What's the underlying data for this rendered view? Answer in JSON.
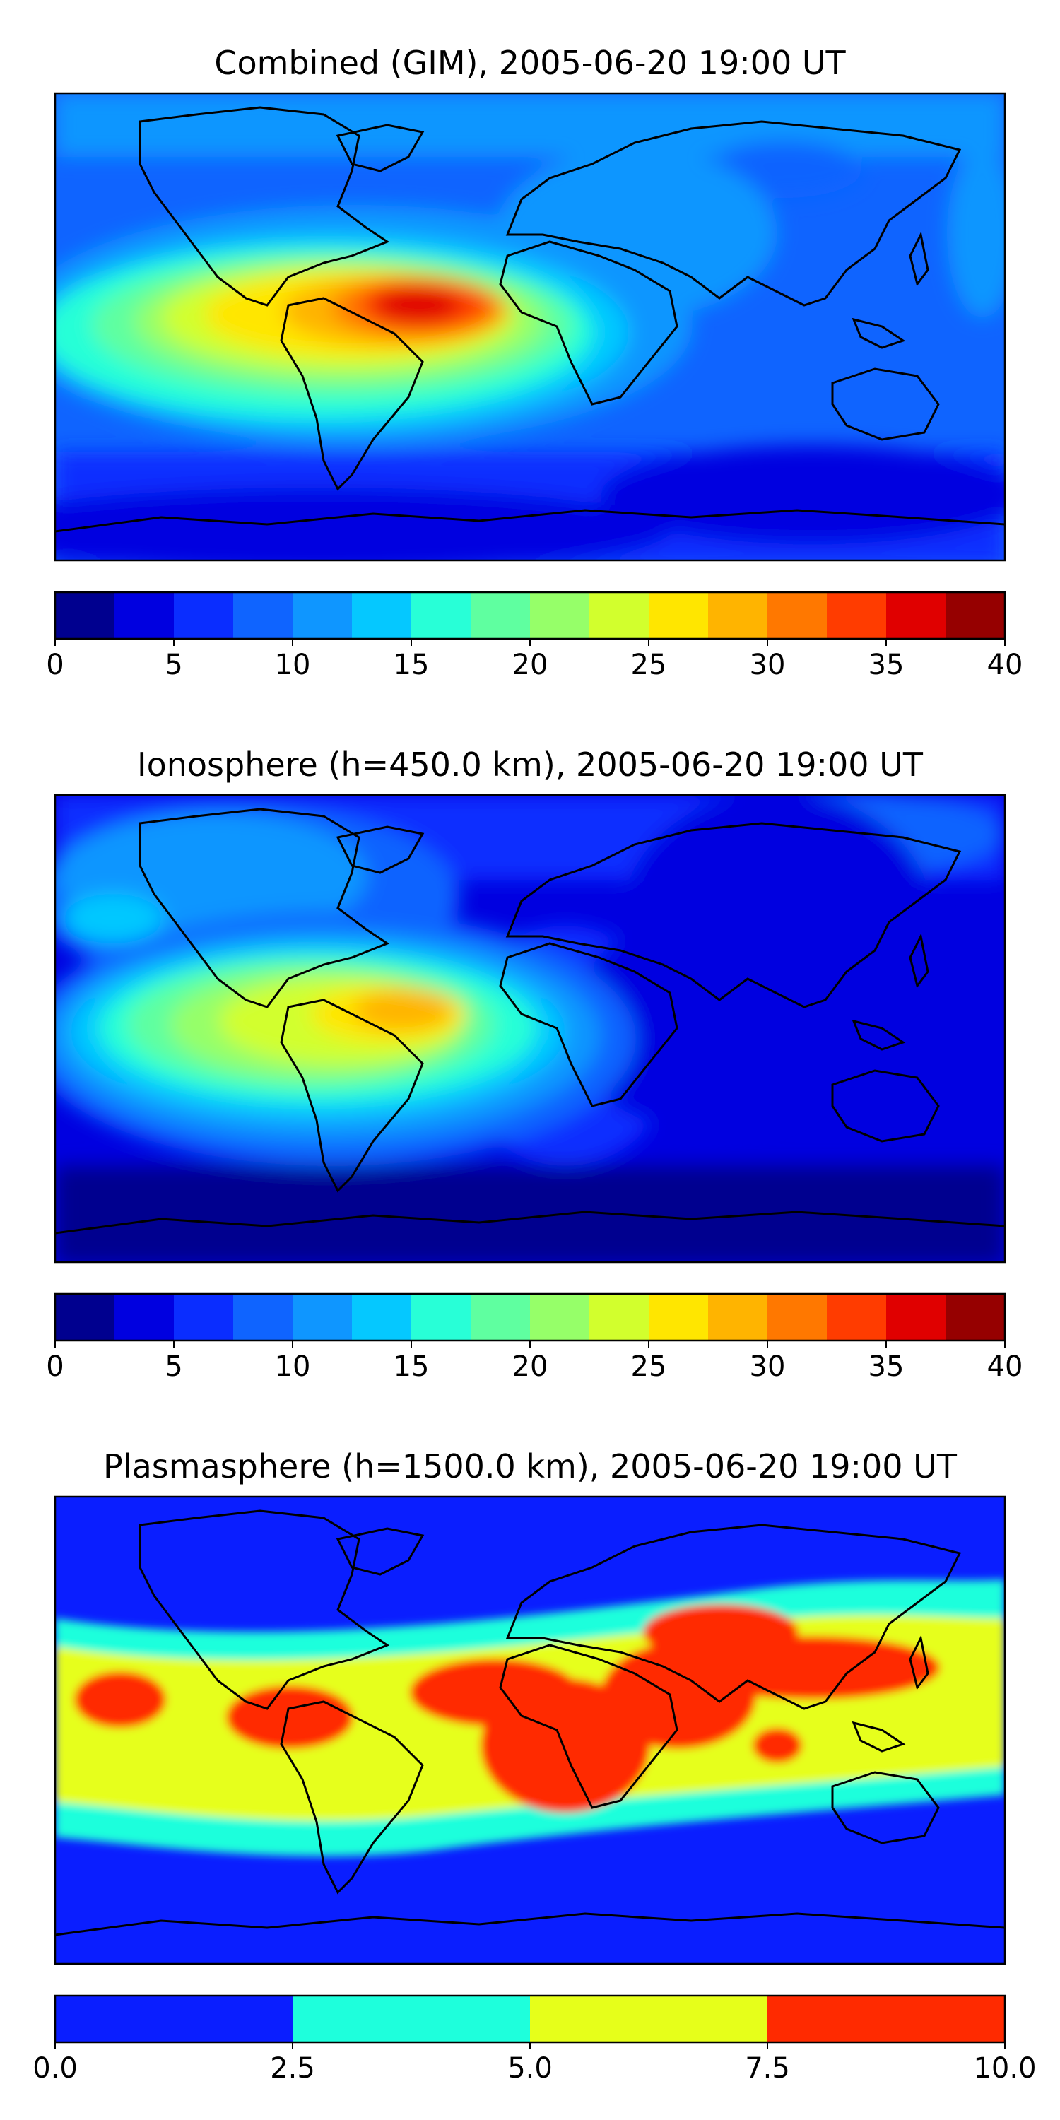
{
  "chart_data": [
    {
      "type": "heatmap",
      "title": "Combined (GIM), 2005-06-20 19:00 UT",
      "colorbar": {
        "levels": [
          0,
          2.5,
          5,
          7.5,
          10,
          12.5,
          15,
          17.5,
          20,
          22.5,
          25,
          27.5,
          30,
          32.5,
          35,
          37.5,
          40
        ],
        "colors": [
          "#00008f",
          "#0000e0",
          "#0a2dff",
          "#0f64ff",
          "#0f96ff",
          "#05c8ff",
          "#28ffd7",
          "#5fffa0",
          "#96ff69",
          "#d2ff2d",
          "#ffe600",
          "#ffb400",
          "#ff7800",
          "#ff3c00",
          "#e00000",
          "#960000"
        ],
        "ticks": [
          "0",
          "5",
          "10",
          "15",
          "20",
          "25",
          "30",
          "35",
          "40"
        ]
      },
      "peak_region": "northern South America",
      "peak_value": 35
    },
    {
      "type": "heatmap",
      "title": "Ionosphere  (h=450.0 km), 2005-06-20 19:00 UT",
      "colorbar": {
        "levels": [
          0,
          2.5,
          5,
          7.5,
          10,
          12.5,
          15,
          17.5,
          20,
          22.5,
          25,
          27.5,
          30,
          32.5,
          35,
          37.5,
          40
        ],
        "colors": [
          "#00008f",
          "#0000e0",
          "#0a2dff",
          "#0f64ff",
          "#0f96ff",
          "#05c8ff",
          "#28ffd7",
          "#5fffa0",
          "#96ff69",
          "#d2ff2d",
          "#ffe600",
          "#ffb400",
          "#ff7800",
          "#ff3c00",
          "#e00000",
          "#960000"
        ],
        "ticks": [
          "0",
          "5",
          "10",
          "15",
          "20",
          "25",
          "30",
          "35",
          "40"
        ]
      },
      "peak_region": "northern South America",
      "peak_value": 30
    },
    {
      "type": "heatmap",
      "title": "Plasmasphere (h=1500.0 km), 2005-06-20 19:00 UT",
      "colorbar": {
        "levels": [
          0.0,
          2.5,
          5.0,
          7.5,
          10.0
        ],
        "colors": [
          "#0a1eff",
          "#1effdc",
          "#e6ff1a",
          "#ff2a00"
        ],
        "ticks": [
          "0.0",
          "2.5",
          "5.0",
          "7.5",
          "10.0"
        ]
      },
      "peak_region": "Africa and equatorial belt",
      "peak_value": 7.5
    }
  ]
}
